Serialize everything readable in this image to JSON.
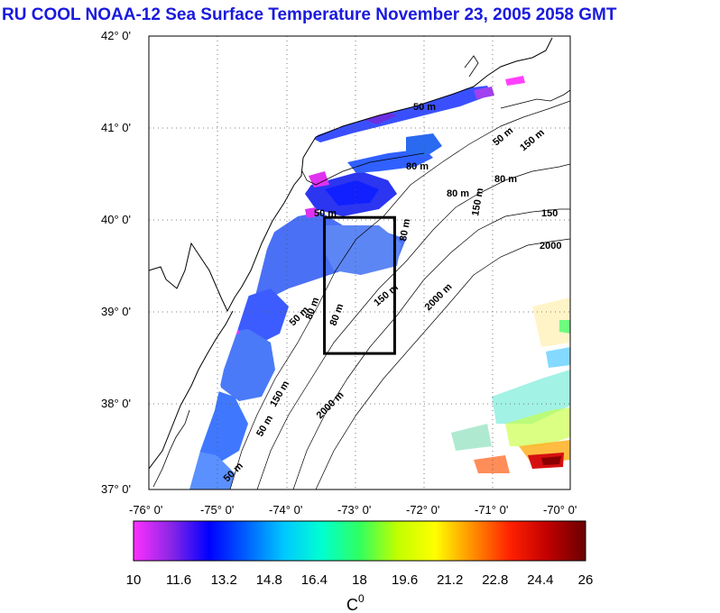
{
  "header": {
    "title": "RU COOL  NOAA-12 Sea Surface Temperature November 23, 2005 2058 GMT"
  },
  "map": {
    "lat_labels": [
      "42° 0'",
      "41° 0'",
      "40° 0'",
      "39° 0'",
      "38° 0'",
      "37° 0'"
    ],
    "lon_labels": [
      "-76° 0'",
      "-75° 0'",
      "-74° 0'",
      "-73° 0'",
      "-72° 0'",
      "-71° 0'",
      "-70° 0'"
    ],
    "extent": {
      "lon_min": -76,
      "lon_max": -70,
      "lat_min": 37,
      "lat_max": 42
    },
    "study_box": {
      "lon_min": -73.5,
      "lon_max": -72.5,
      "lat_min": 38.5,
      "lat_max": 40.0
    },
    "depth_labels": [
      "50 m",
      "50 m",
      "50 m",
      "50 m",
      "50 m",
      "80 m",
      "80 m",
      "80 m",
      "80 m",
      "150 m",
      "150 m",
      "150",
      "150 m",
      "150 m",
      "2000",
      "2000 m",
      "2000 m",
      "50 m",
      "80 m",
      "80 m"
    ]
  },
  "colorbar": {
    "ticks": [
      "10",
      "11.6",
      "13.2",
      "14.8",
      "16.4",
      "18",
      "19.6",
      "21.2",
      "22.8",
      "24.4",
      "26"
    ],
    "unit": "C",
    "unit_sup": "0",
    "min": 10,
    "max": 26,
    "colors": [
      "#ff30ff",
      "#8a26e6",
      "#0000ff",
      "#0060ff",
      "#00c8ff",
      "#00ffd0",
      "#30ff60",
      "#c0ff00",
      "#ffff00",
      "#ff9000",
      "#ff2000",
      "#c00000",
      "#6a0000"
    ]
  }
}
